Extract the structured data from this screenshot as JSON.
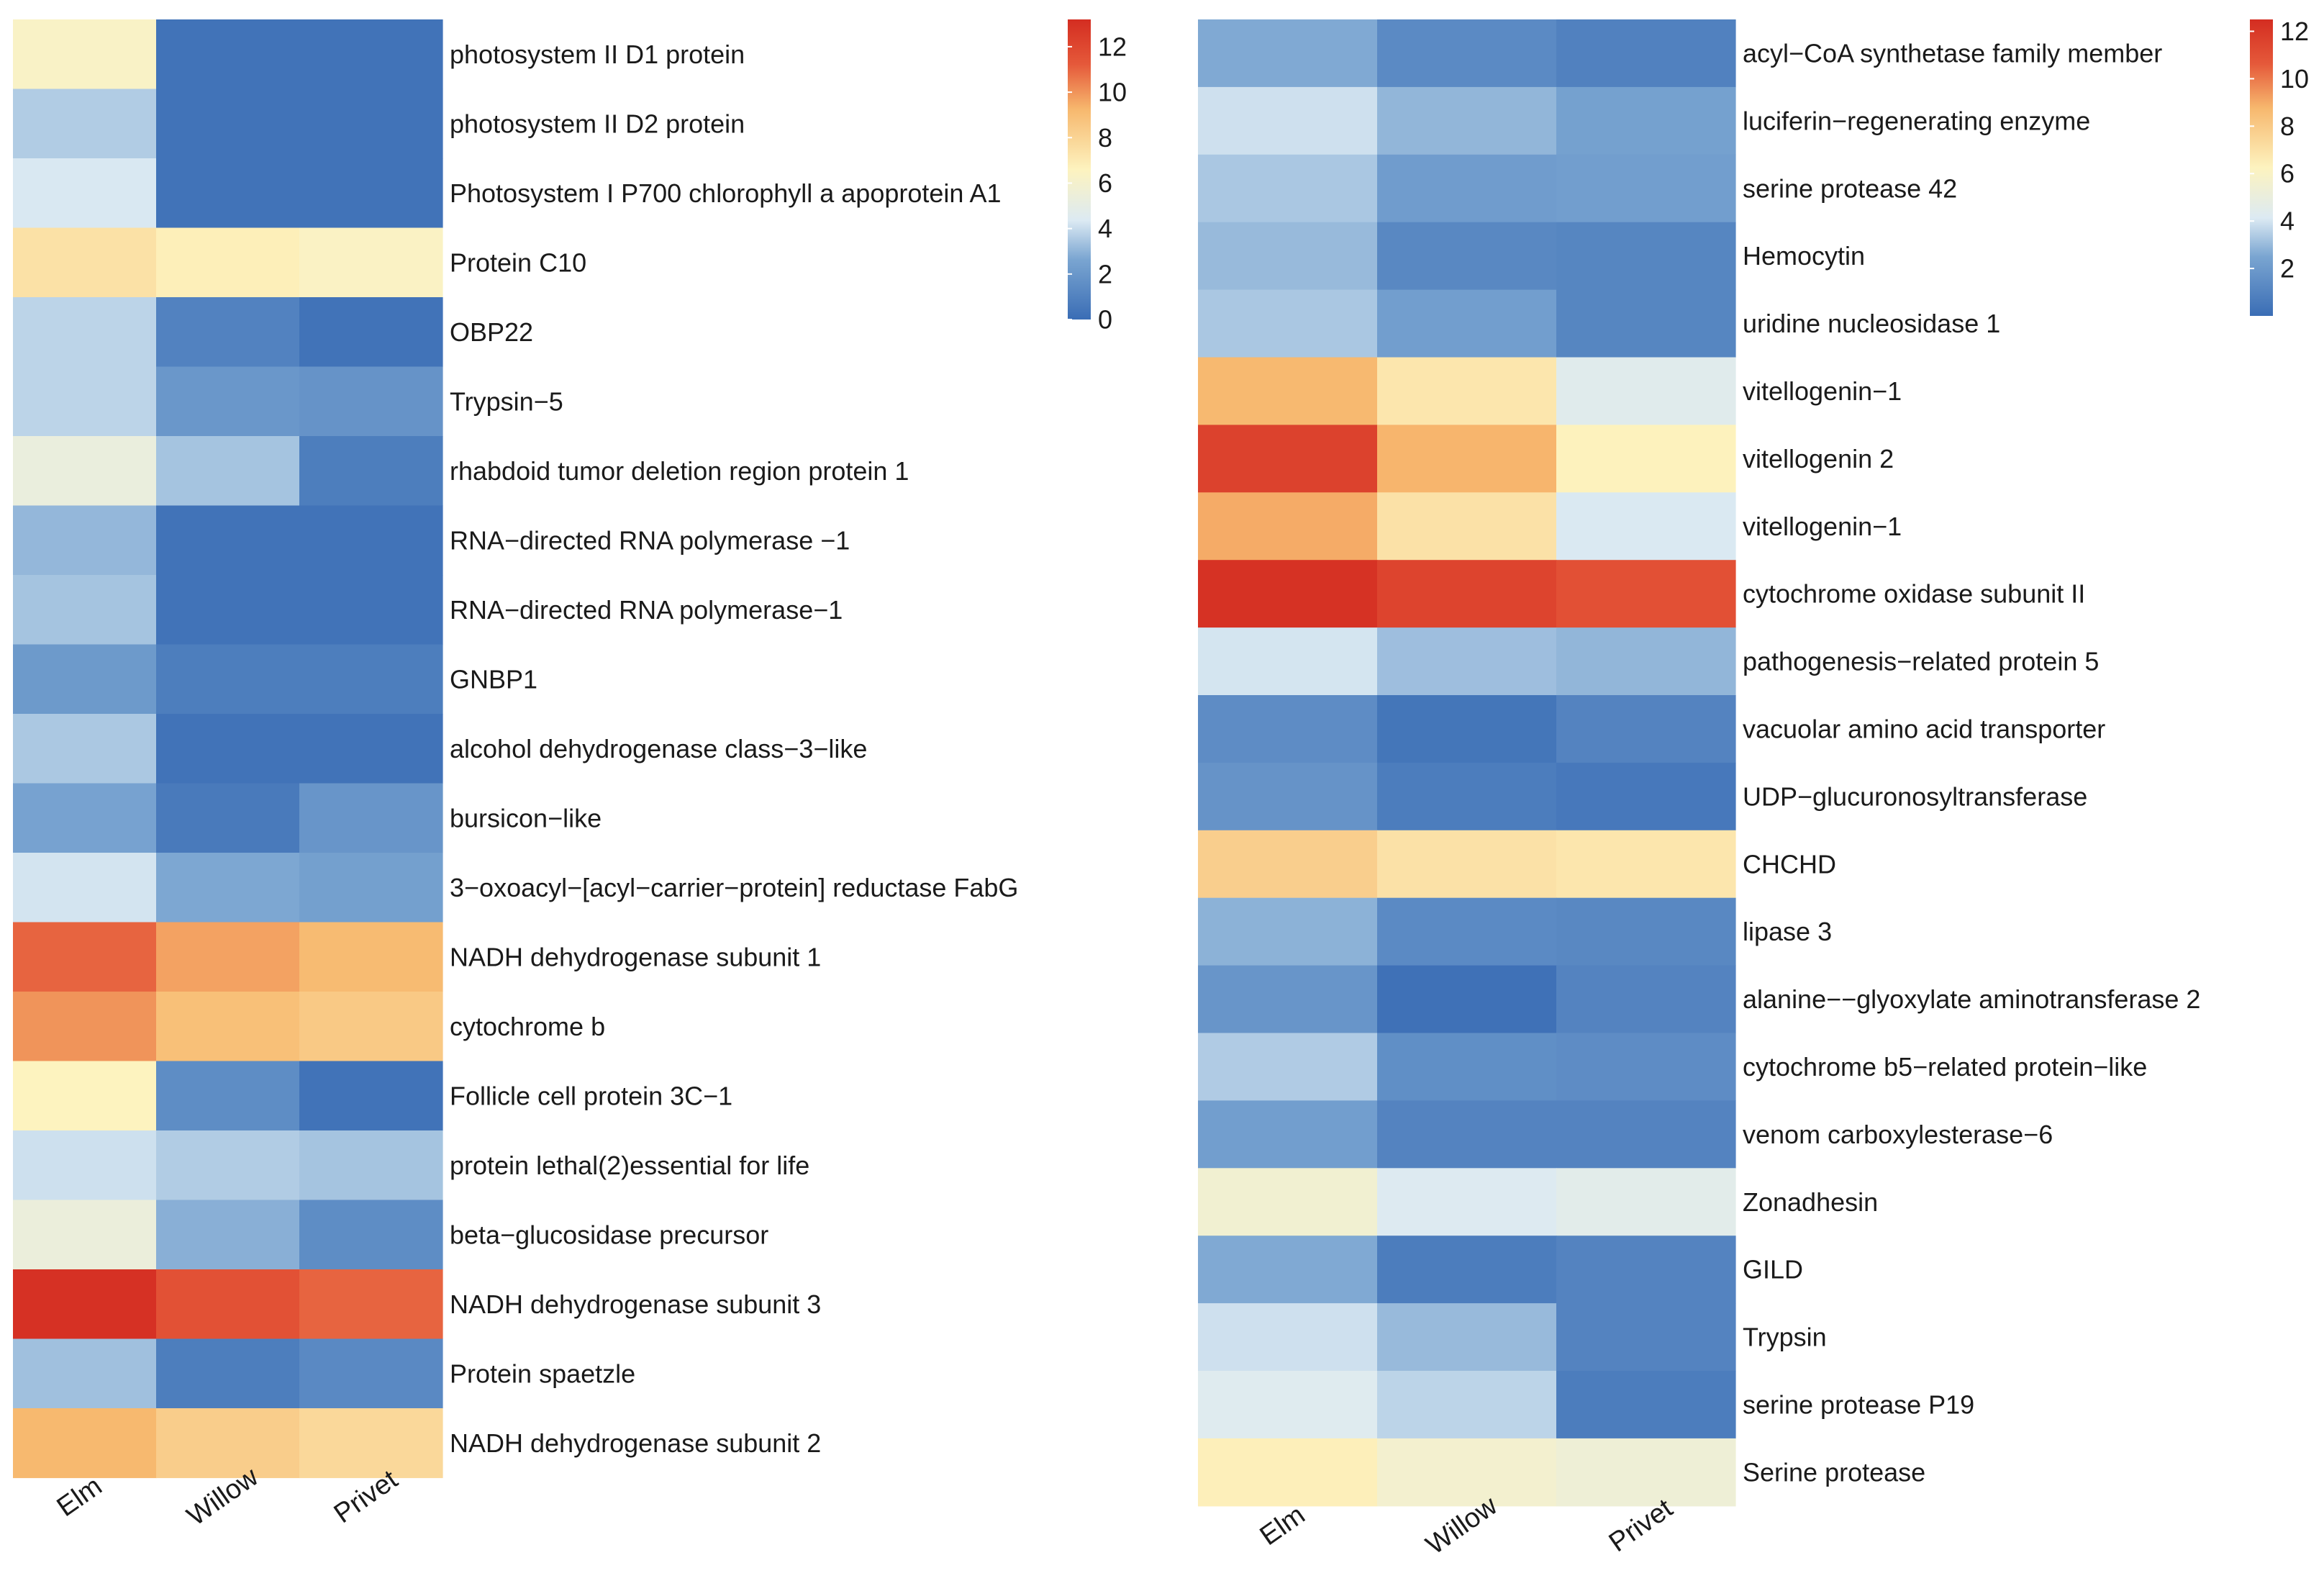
{
  "chart_data": [
    {
      "type": "heatmap",
      "columns": [
        "Elm",
        "Willow",
        "Privet"
      ],
      "colorbar": {
        "min": 0,
        "max": 13.2,
        "ticks": [
          0,
          2,
          4,
          6,
          8,
          10,
          12
        ]
      },
      "rows": [
        {
          "label": "photosystem II D1 protein",
          "values": [
            6.3,
            0.3,
            0.3
          ]
        },
        {
          "label": "photosystem II D2 protein",
          "values": [
            3.6,
            0.3,
            0.3
          ]
        },
        {
          "label": "Photosystem I P700 chlorophyll a apoprotein A1",
          "values": [
            4.3,
            0.3,
            0.3
          ]
        },
        {
          "label": "Protein C10",
          "values": [
            7.4,
            6.8,
            6.4
          ]
        },
        {
          "label": "OBP22",
          "values": [
            3.8,
            1.0,
            0.3
          ]
        },
        {
          "label": "Trypsin−5",
          "values": [
            3.8,
            2.0,
            1.8
          ]
        },
        {
          "label": "rhabdoid tumor deletion region protein 1",
          "values": [
            5.3,
            3.4,
            0.8
          ]
        },
        {
          "label": "RNA−directed RNA polymerase −1",
          "values": [
            3.1,
            0.3,
            0.3
          ]
        },
        {
          "label": "RNA−directed RNA polymerase−1",
          "values": [
            3.4,
            0.3,
            0.3
          ]
        },
        {
          "label": "GNBP1",
          "values": [
            2.1,
            0.8,
            0.8
          ]
        },
        {
          "label": "alcohol dehydrogenase class−3−like",
          "values": [
            3.5,
            0.3,
            0.3
          ]
        },
        {
          "label": " bursicon−like",
          "values": [
            2.5,
            0.6,
            1.9
          ]
        },
        {
          "label": "3−oxoacyl−[acyl−carrier−protein] reductase FabG",
          "values": [
            4.2,
            2.7,
            2.4
          ]
        },
        {
          "label": "NADH dehydrogenase subunit 1",
          "values": [
            11.0,
            9.7,
            9.1
          ]
        },
        {
          "label": "cytochrome b",
          "values": [
            10.0,
            8.9,
            8.5
          ]
        },
        {
          "label": "Follicle cell protein 3C−1",
          "values": [
            6.6,
            1.5,
            0.3
          ]
        },
        {
          "label": "protein lethal(2)essential for life",
          "values": [
            4.1,
            3.6,
            3.4
          ]
        },
        {
          "label": "beta−glucosidase precursor",
          "values": [
            5.4,
            2.9,
            1.5
          ]
        },
        {
          "label": "NADH dehydrogenase subunit 3",
          "values": [
            13.0,
            11.6,
            11.0
          ]
        },
        {
          "label": "Protein spaetzle",
          "values": [
            3.3,
            0.8,
            1.3
          ]
        },
        {
          "label": "NADH dehydrogenase subunit 2",
          "values": [
            9.2,
            8.3,
            7.8
          ]
        }
      ],
      "xlabel": "",
      "ylabel": "",
      "title": ""
    },
    {
      "type": "heatmap",
      "columns": [
        "Elm",
        "Willow",
        "Privet"
      ],
      "colorbar": {
        "min": 0,
        "max": 12.5,
        "ticks": [
          2,
          4,
          6,
          8,
          10,
          12
        ]
      },
      "rows": [
        {
          "label": "acyl−CoA synthetase family member",
          "values": [
            2.6,
            1.3,
            0.9
          ]
        },
        {
          "label": "luciferin−regenerating enzyme",
          "values": [
            3.9,
            2.9,
            2.3
          ]
        },
        {
          "label": "serine protease 42",
          "values": [
            3.3,
            2.1,
            2.2
          ]
        },
        {
          "label": "Hemocytin",
          "values": [
            3.0,
            1.2,
            1.1
          ]
        },
        {
          "label": "uridine nucleosidase 1",
          "values": [
            3.3,
            2.2,
            1.1
          ]
        },
        {
          "label": "vitellogenin−1",
          "values": [
            8.7,
            6.8,
            4.4
          ]
        },
        {
          "label": "vitellogenin 2",
          "values": [
            11.6,
            8.8,
            6.3
          ]
        },
        {
          "label": "vitellogenin−1",
          "values": [
            9.0,
            7.0,
            4.1
          ]
        },
        {
          "label": "cytochrome oxidase subunit II",
          "values": [
            12.3,
            11.5,
            11.0
          ]
        },
        {
          "label": " pathogenesis−related protein 5",
          "values": [
            4.0,
            3.1,
            2.9
          ]
        },
        {
          "label": "vacuolar amino acid transporter",
          "values": [
            1.4,
            0.4,
            1.0
          ]
        },
        {
          "label": "UDP−glucuronosyltransferase",
          "values": [
            1.7,
            0.7,
            0.5
          ]
        },
        {
          "label": "CHCHD",
          "values": [
            7.8,
            7.0,
            6.8
          ]
        },
        {
          "label": "lipase 3",
          "values": [
            2.8,
            1.3,
            1.2
          ]
        },
        {
          "label": " alanine−−glyoxylate aminotransferase 2",
          "values": [
            1.8,
            0.2,
            1.0
          ]
        },
        {
          "label": " cytochrome b5−related protein−like",
          "values": [
            3.4,
            1.5,
            1.4
          ]
        },
        {
          "label": " venom carboxylesterase−6",
          "values": [
            2.2,
            1.0,
            1.0
          ]
        },
        {
          "label": "Zonadhesin",
          "values": [
            5.5,
            4.2,
            4.5
          ]
        },
        {
          "label": "GILD",
          "values": [
            2.6,
            0.7,
            1.0
          ]
        },
        {
          "label": "Trypsin",
          "values": [
            3.9,
            3.0,
            1.0
          ]
        },
        {
          "label": "serine protease P19",
          "values": [
            4.3,
            3.6,
            0.7
          ]
        },
        {
          "label": "Serine protease",
          "values": [
            6.4,
            5.6,
            5.3
          ]
        }
      ],
      "xlabel": "",
      "ylabel": "",
      "title": ""
    }
  ]
}
